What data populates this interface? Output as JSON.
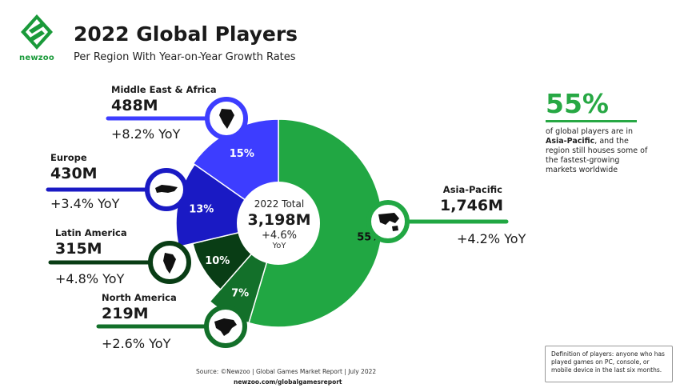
{
  "header": {
    "brand": "newzoo",
    "title": "2022 Global Players",
    "subtitle": "Per Region With Year-on-Year Growth Rates"
  },
  "chart_data": {
    "type": "pie",
    "donut": true,
    "categories": [
      "Asia-Pacific",
      "North America",
      "Latin America",
      "Europe",
      "Middle East & Africa"
    ],
    "values": [
      1746,
      219,
      315,
      430,
      488
    ],
    "unit_labels": [
      "1,746M",
      "219M",
      "315M",
      "430M",
      "488M"
    ],
    "percent_labels": [
      "55%",
      "7%",
      "10%",
      "13%",
      "15%"
    ],
    "yoy": [
      "+4.2% YoY",
      "+2.6% YoY",
      "+4.8% YoY",
      "+3.4% YoY",
      "+8.2% YoY"
    ],
    "colors": [
      "#21a743",
      "#13702a",
      "#093d15",
      "#1a1ac4",
      "#3d3dff"
    ],
    "icons": [
      "asia-pacific-map-icon",
      "north-america-map-icon",
      "latin-america-map-icon",
      "europe-map-icon",
      "africa-map-icon"
    ],
    "center": {
      "title": "2022 Total",
      "value": "3,198M",
      "growth": "+4.6%",
      "growth_unit": "YoY"
    }
  },
  "callout": {
    "big": "55%",
    "text_pre": "of global players are in ",
    "text_bold": "Asia-Pacific",
    "text_post": ", and the region still houses some of the fastest-growing markets worldwide"
  },
  "definition": "Definition of players: anyone who has played games on PC, console, or mobile device in the last six months.",
  "footer": {
    "source": "Source: ©Newzoo | Global Games Market Report | July 2022",
    "site": "newzoo.com/globalgamesreport"
  }
}
